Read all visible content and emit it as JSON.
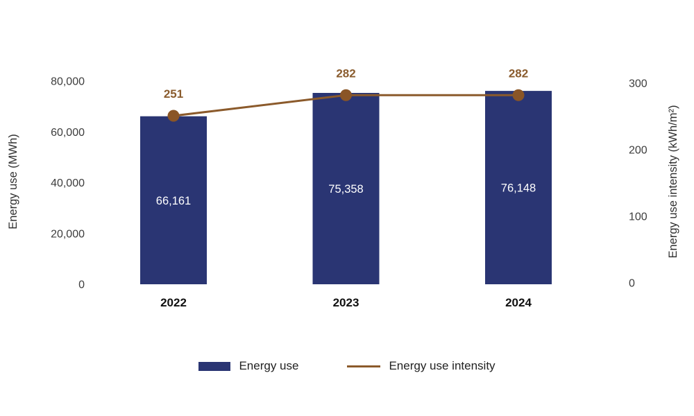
{
  "chart_data": {
    "type": "bar",
    "subtype": "combo-bar-line-dual-axis",
    "title": "",
    "categories": [
      "2022",
      "2023",
      "2024"
    ],
    "series": [
      {
        "name": "Energy use",
        "type": "bar",
        "axis": "left",
        "values": [
          66161,
          75358,
          76148
        ],
        "labels": [
          "66,161",
          "75,358",
          "76,148"
        ],
        "color": "#2a3573",
        "label_color": "#ffffff"
      },
      {
        "name": "Energy use intensity",
        "type": "line",
        "axis": "right",
        "values": [
          251,
          282,
          282
        ],
        "labels": [
          "251",
          "282",
          "282"
        ],
        "color": "#8b5a2b",
        "marker_color": "#8a5526",
        "label_color": "#8a5c2e"
      }
    ],
    "left_axis": {
      "label": "Energy use (MWh)",
      "range": [
        0,
        80000
      ],
      "ticks": [
        0,
        20000,
        40000,
        60000,
        80000
      ],
      "tick_labels": [
        "0",
        "20,000",
        "40,000",
        "60,000",
        "80,000"
      ]
    },
    "right_axis": {
      "label": "Energy use intensity (kWh/m²)",
      "range": [
        0,
        300
      ],
      "ticks": [
        0,
        100,
        200,
        300
      ],
      "tick_labels": [
        "0",
        "100",
        "200",
        "300"
      ]
    },
    "legend": {
      "position": "bottom",
      "entries": [
        "Energy use",
        "Energy use intensity"
      ]
    },
    "grid": false,
    "axis_text_color": "#3d3d3d",
    "background": "#ffffff"
  }
}
